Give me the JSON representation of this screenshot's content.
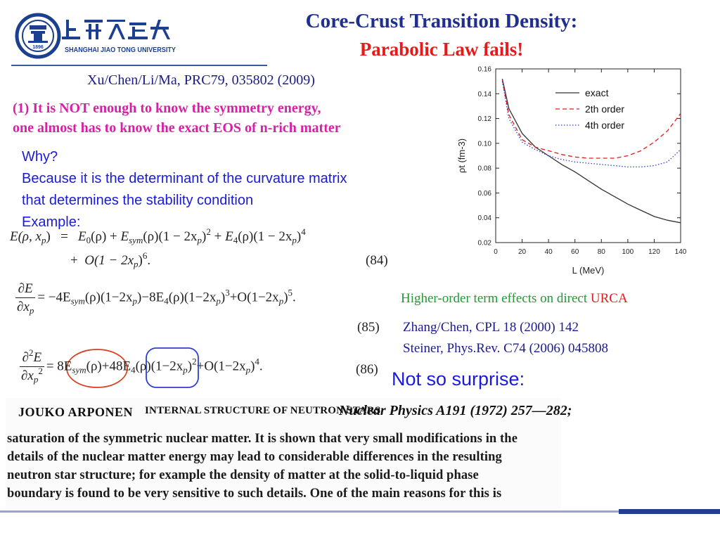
{
  "logo": {
    "wordmark": "SHANGHAI  JIAO TONG  UNIVERSITY",
    "year": "1896",
    "seal_icon": "university-seal-icon"
  },
  "title": {
    "line1": "Core-Crust Transition Density:",
    "line2": "Parabolic Law fails!"
  },
  "colors": {
    "title_blue": "#1f2f8f",
    "title_red": "#e41b1b",
    "claim_magenta": "#d81fa6",
    "why_blue": "#1a1adb",
    "note_green": "#1f9a35",
    "ref_navy": "#1b1b8e"
  },
  "citation": "Xu/Chen/Li/Ma, PRC79, 035802 (2009)",
  "claim": {
    "line1": "(1) It is NOT enough to know the symmetry energy,",
    "line2": "one almost has to know the exact EOS of n-rich matter"
  },
  "why": {
    "line1": "Why?",
    "line2": "Because it is the determinant of the curvature matrix",
    "line3": "that determines the stability condition",
    "line4": "Example:"
  },
  "equations": {
    "eq84": {
      "lhs": "E(ρ, x",
      "lhs_sub": "p",
      "lhs_close": ")",
      "equals": "=",
      "t1": "E",
      "t1_sub": "0",
      "t1_rest": "(ρ) + ",
      "t2": "E",
      "t2_sub": "sym",
      "t2_rest": "(ρ)(1 − 2x",
      "t2_sub2": "p",
      "t2_close": ")",
      "t2_pow": "2",
      "t3_plus": " + ",
      "t3": "E",
      "t3_sub": "4",
      "t3_rest": "(ρ)(1 − 2x",
      "t3_sub2": "p",
      "t3_close": ")",
      "t3_pow": "4",
      "line2_plus": "+",
      "line2_term": "O(1 − 2x",
      "line2_sub": "p",
      "line2_close": ")",
      "line2_pow": "6",
      "line2_end": ".",
      "tag": "(84)"
    },
    "eq85": {
      "num": "∂E",
      "den": "∂x",
      "den_sub": "p",
      "body_a": "= −4E",
      "body_a_sub": "sym",
      "body_b": "(ρ)(1−2x",
      "body_b_sub": "p",
      "body_c": ")−8E",
      "body_c_sub": "4",
      "body_d": "(ρ)(1−2x",
      "body_d_sub": "p",
      "body_e": ")",
      "body_e_pow": "3",
      "body_f": "+O(1−2x",
      "body_f_sub": "p",
      "body_g": ")",
      "body_g_pow": "5",
      "body_end": ".",
      "tag": "(85)"
    },
    "eq86": {
      "num": "∂",
      "num_pow": "2",
      "num_rest": "E",
      "den": "∂x",
      "den_sub": "p",
      "den_pow": "2",
      "body_a": "= 8E",
      "body_a_sub": "sym",
      "body_b": "(ρ)+48E",
      "body_b_sub": "4",
      "body_c": "(ρ)(1−2x",
      "body_c_sub": "p",
      "body_d": ")",
      "body_d_pow": "2",
      "body_e": "+O(1−2x",
      "body_e_sub": "p",
      "body_f": ")",
      "body_f_pow": "4",
      "body_end": ".",
      "tag": "(86)"
    }
  },
  "annotations": {
    "red_circle_color": "#d9401f",
    "blue_circle_color": "#2b3fd6"
  },
  "urca_note": {
    "text": "Higher-order term effects on direct ",
    "highlight": "URCA"
  },
  "references": {
    "ref1": "Zhang/Chen, CPL 18 (2000) 142",
    "ref2": "Steiner, Phys.Rev. C74 (2006) 045808"
  },
  "not_so_surprise": "Not so surprise:",
  "scan": {
    "author": "JOUKO  ARPONEN",
    "title": "INTERNAL  STRUCTURE  OF  NEUTRON  STARS",
    "journal": "Nuclear Physics A191 (1972) 257—282;",
    "lines": [
      "saturation of the symmetric nuclear matter. It is shown that very small modifications in the",
      "details of the nuclear matter energy may lead to considerable differences in the resulting",
      "neutron star structure; for example the density of  matter at the solid-to-liquid  phase",
      "boundary is found to be very sensitive to such details.  One of the main reasons for this is"
    ]
  },
  "chart_data": {
    "type": "line",
    "title": "",
    "xlabel": "L (MeV)",
    "ylabel": "ρt (fm-3)",
    "xlim": [
      0,
      140
    ],
    "ylim": [
      0.02,
      0.16
    ],
    "xticks": [
      "0",
      "20",
      "40",
      "60",
      "80",
      "100",
      "120",
      "140"
    ],
    "yticks": [
      "0.02",
      "0.04",
      "0.06",
      "0.08",
      "0.10",
      "0.12",
      "0.14",
      "0.16"
    ],
    "legend_position": "top-right",
    "grid": false,
    "series": [
      {
        "name": "exact",
        "color": "#333333",
        "style": "solid",
        "x": [
          5,
          10,
          20,
          30,
          40,
          50,
          60,
          70,
          80,
          90,
          100,
          110,
          120,
          130,
          140
        ],
        "y": [
          0.152,
          0.128,
          0.108,
          0.097,
          0.09,
          0.083,
          0.077,
          0.07,
          0.063,
          0.057,
          0.051,
          0.046,
          0.041,
          0.038,
          0.036
        ]
      },
      {
        "name": "2th order",
        "color": "#e41b1b",
        "style": "dashed",
        "x": [
          5,
          10,
          20,
          30,
          40,
          50,
          60,
          70,
          80,
          90,
          100,
          110,
          120,
          130,
          140
        ],
        "y": [
          0.151,
          0.123,
          0.103,
          0.097,
          0.094,
          0.091,
          0.089,
          0.088,
          0.088,
          0.088,
          0.09,
          0.094,
          0.101,
          0.11,
          0.124
        ]
      },
      {
        "name": "4th order",
        "color": "#2b3fd6",
        "style": "dotted",
        "x": [
          5,
          10,
          20,
          30,
          40,
          50,
          60,
          70,
          80,
          90,
          100,
          110,
          120,
          130,
          140
        ],
        "y": [
          0.15,
          0.12,
          0.101,
          0.095,
          0.09,
          0.087,
          0.085,
          0.084,
          0.083,
          0.082,
          0.081,
          0.081,
          0.082,
          0.085,
          0.095
        ]
      }
    ]
  }
}
